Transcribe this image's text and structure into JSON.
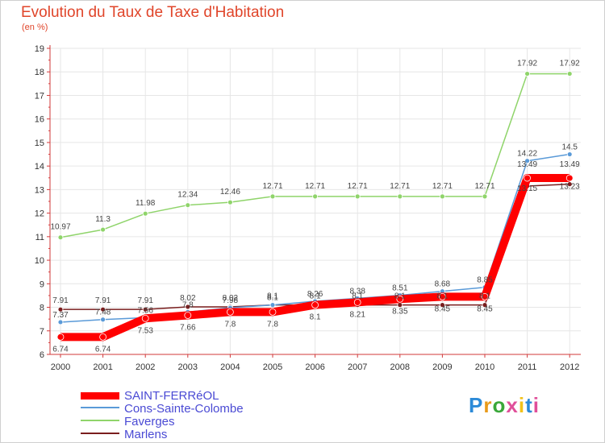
{
  "header": {
    "title": "Evolution du Taux de Taxe d'Habitation",
    "unit": "(en %)"
  },
  "colors": {
    "title": "#e0452a",
    "legend_text": "#4a4ad4",
    "axis": "#d23a3a",
    "grid": "#e6e6e6"
  },
  "logo": {
    "text": "Proxiti",
    "letters": [
      "P",
      "r",
      "o",
      "x",
      "i",
      "t",
      "i"
    ],
    "colors": [
      "#2b8ad8",
      "#e89a1a",
      "#3aa83a",
      "#e04f9a",
      "#f2c21a",
      "#2b8ad8",
      "#e04f9a"
    ]
  },
  "chart_data": {
    "type": "line",
    "title": "Evolution du Taux de Taxe d'Habitation",
    "ylabel": "(en %)",
    "xlabel": "",
    "categories": [
      "2000",
      "2001",
      "2002",
      "2003",
      "2004",
      "2005",
      "2006",
      "2007",
      "2008",
      "2009",
      "2010",
      "2011",
      "2012"
    ],
    "ylim": [
      6,
      19
    ],
    "yticks": [
      "6",
      "7",
      "8",
      "9",
      "10",
      "11",
      "12",
      "13",
      "14",
      "15",
      "16",
      "17",
      "18",
      "19"
    ],
    "grid": true,
    "series": [
      {
        "name": "SAINT-FERRéOL",
        "color": "#ff0000",
        "thick": true,
        "values": [
          6.74,
          6.74,
          7.53,
          7.66,
          7.8,
          7.8,
          8.1,
          8.21,
          8.35,
          8.45,
          8.45,
          13.49,
          13.49
        ],
        "labels": [
          "6.74",
          "6.74",
          "7.53",
          "7.66",
          "7.8",
          "7.8",
          "8.1",
          "8.21",
          "8.35",
          "8.45",
          "8.45",
          "13.49",
          "13.49"
        ]
      },
      {
        "name": "Cons-Sainte-Colombe",
        "color": "#5a9ad8",
        "thick": false,
        "values": [
          7.37,
          7.48,
          7.56,
          7.8,
          7.98,
          8.1,
          8.26,
          8.38,
          8.51,
          8.68,
          8.85,
          14.22,
          14.5
        ],
        "labels": [
          "7.37",
          "7.48",
          "7.56",
          "7.8",
          "7.98",
          "8.1",
          "8.26",
          "8.38",
          "8.51",
          "8.68",
          "8.85",
          "14.22",
          "14.5"
        ]
      },
      {
        "name": "Faverges",
        "color": "#8fd46a",
        "thick": false,
        "values": [
          10.97,
          11.3,
          11.98,
          12.34,
          12.46,
          12.71,
          12.71,
          12.71,
          12.71,
          12.71,
          12.71,
          17.92,
          17.92
        ],
        "labels": [
          "10.97",
          "11.3",
          "11.98",
          "12.34",
          "12.46",
          "12.71",
          "12.71",
          "12.71",
          "12.71",
          "12.71",
          "12.71",
          "17.92",
          "17.92"
        ]
      },
      {
        "name": "Marlens",
        "color": "#7a1e1e",
        "thick": false,
        "values": [
          7.91,
          7.91,
          7.91,
          8.02,
          8.02,
          8.1,
          8.1,
          8.1,
          8.1,
          8.1,
          8.1,
          13.15,
          13.23
        ],
        "labels": [
          "7.91",
          "7.91",
          "7.91",
          "8.02",
          "8.02",
          "8.1",
          "8.1",
          "8.1",
          "8.1",
          "8.1",
          "8.1",
          "13.15",
          "13.23"
        ]
      }
    ]
  }
}
